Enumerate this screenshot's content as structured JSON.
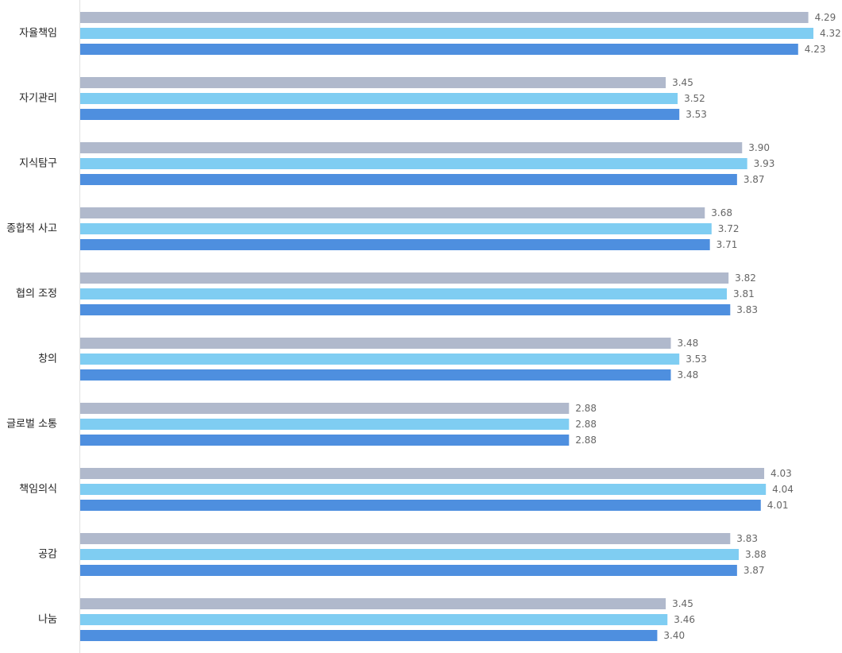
{
  "chart_data": {
    "type": "bar",
    "orientation": "horizontal",
    "categories": [
      "자율책임",
      "자기관리",
      "지식탐구",
      "종합적 사고",
      "협의 조정",
      "창의",
      "글로벌 소통",
      "책임의식",
      "공감",
      "나눔"
    ],
    "series": [
      {
        "color": "#b0b9cc",
        "values": [
          4.29,
          3.45,
          3.9,
          3.68,
          3.82,
          3.48,
          2.88,
          4.03,
          3.83,
          3.45
        ]
      },
      {
        "color": "#7fcdf2",
        "values": [
          4.32,
          3.52,
          3.93,
          3.72,
          3.81,
          3.53,
          2.88,
          4.04,
          3.88,
          3.46
        ]
      },
      {
        "color": "#4e8fdf",
        "values": [
          4.23,
          3.53,
          3.87,
          3.71,
          3.83,
          3.48,
          2.88,
          4.01,
          3.87,
          3.4
        ]
      }
    ],
    "value_labels": [
      [
        "4.29",
        "4.32",
        "4.23"
      ],
      [
        "3.45",
        "3.52",
        "3.53"
      ],
      [
        "3.90",
        "3.93",
        "3.87"
      ],
      [
        "3.68",
        "3.72",
        "3.71"
      ],
      [
        "3.82",
        "3.81",
        "3.83"
      ],
      [
        "3.48",
        "3.53",
        "3.48"
      ],
      [
        "2.88",
        "2.88",
        "2.88"
      ],
      [
        "4.03",
        "4.04",
        "4.01"
      ],
      [
        "3.83",
        "3.88",
        "3.87"
      ],
      [
        "3.45",
        "3.46",
        "3.40"
      ]
    ],
    "xlim": [
      0,
      4.32
    ],
    "grid": false,
    "legend": "none",
    "axis_line_color": "#e0e0e0"
  }
}
